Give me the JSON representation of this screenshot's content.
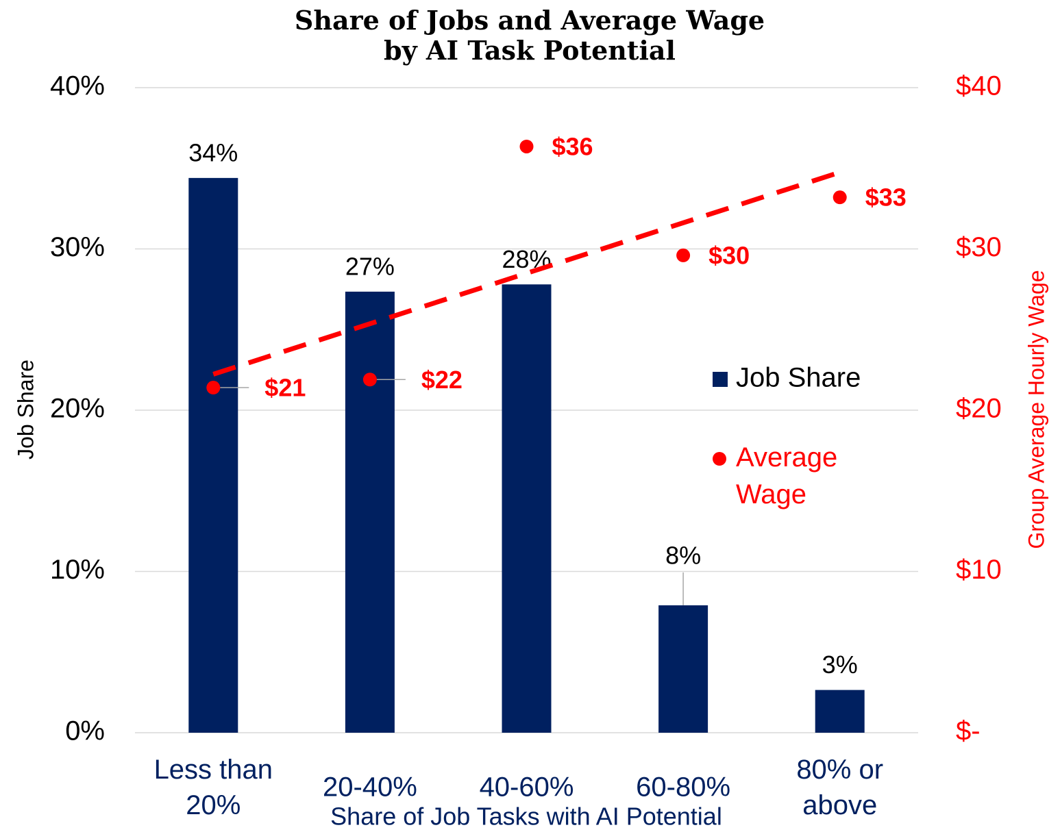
{
  "chart_data": {
    "type": "bar",
    "title": "Share of Jobs and Average Wage\nby AI Task Potential",
    "categories": [
      "Less than\n20%",
      "20-40%",
      "40-60%",
      "60-80%",
      "80% or\nabove"
    ],
    "x_label": "Share of Job Tasks with AI Potential",
    "y_label": "Job Share",
    "y2_label": "Group Average Hourly Wage",
    "series": [
      {
        "name": "Job Share",
        "type": "bar",
        "color": "#002060",
        "values": [
          34.4,
          27.35,
          27.8,
          7.9,
          2.65
        ],
        "value_labels": [
          "34%",
          "27%",
          "28%",
          "8%",
          "3%"
        ]
      },
      {
        "name": "Average\nWage",
        "type": "scatter",
        "axis": "y2",
        "color": "#ff0000",
        "trendline": "linear",
        "values": [
          21.4,
          21.9,
          36.35,
          29.6,
          33.2
        ],
        "value_labels": [
          "$21",
          "$22",
          "$36",
          "$30",
          "$33"
        ]
      }
    ],
    "ylim": [
      0,
      40
    ],
    "yticks": [
      {
        "value": 0,
        "label": "0%"
      },
      {
        "value": 10,
        "label": "10%"
      },
      {
        "value": 20,
        "label": "20%"
      },
      {
        "value": 30,
        "label": "30%"
      },
      {
        "value": 40,
        "label": "40%"
      }
    ],
    "y2lim": [
      0,
      40
    ],
    "y2ticks": [
      {
        "value": 0,
        "label": "$-"
      },
      {
        "value": 10,
        "label": "$10"
      },
      {
        "value": 20,
        "label": "$20"
      },
      {
        "value": 30,
        "label": "$30"
      },
      {
        "value": 40,
        "label": "$40"
      }
    ],
    "grid": true,
    "legend": "right"
  }
}
